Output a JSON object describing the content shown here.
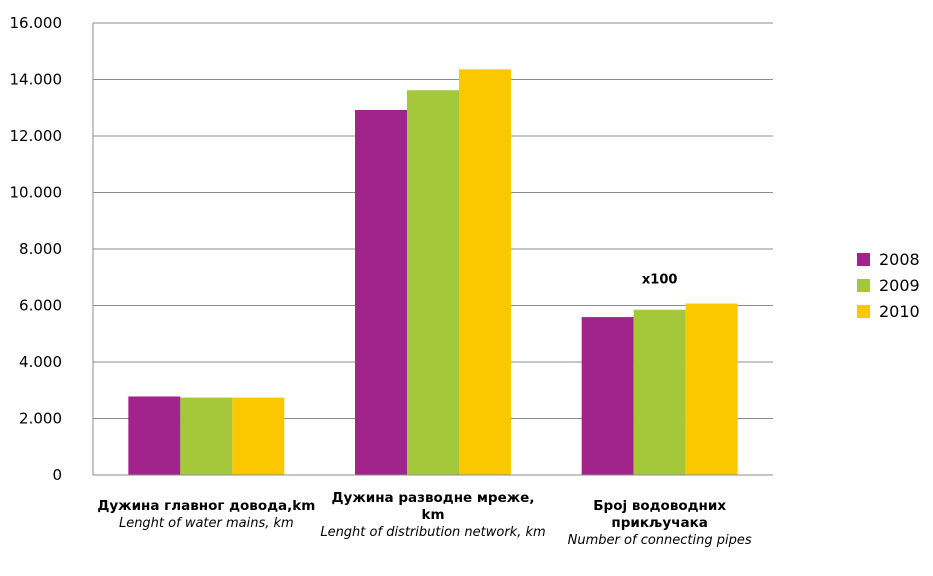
{
  "chart_data": {
    "type": "bar",
    "categories": [
      {
        "label_sr": "Дужина главног довода,km",
        "label_en": "Lenght of water mains, km"
      },
      {
        "label_sr": "Дужина разводне мреже, km",
        "label_en": "Lenght of distribution network, km"
      },
      {
        "label_sr": "Број водоводних прикључака",
        "label_en": "Number of connecting pipes"
      }
    ],
    "series": [
      {
        "name": "2008",
        "color": "#a0248c",
        "values": [
          2780,
          12920,
          5590
        ]
      },
      {
        "name": "2009",
        "color": "#a4c83a",
        "values": [
          2740,
          13620,
          5850
        ]
      },
      {
        "name": "2010",
        "color": "#fbc800",
        "values": [
          2740,
          14360,
          6070
        ]
      }
    ],
    "ylim": [
      0,
      16000
    ],
    "yticks": [
      0,
      2000,
      4000,
      6000,
      8000,
      10000,
      12000,
      14000,
      16000
    ],
    "ytick_labels": [
      "0",
      "2.000",
      "4.000",
      "6.000",
      "8.000",
      "10.000",
      "12.000",
      "14.000",
      "16.000"
    ],
    "annotations": [
      {
        "category_index": 2,
        "text": "x100"
      }
    ],
    "grid": true,
    "legend_position": "right"
  }
}
